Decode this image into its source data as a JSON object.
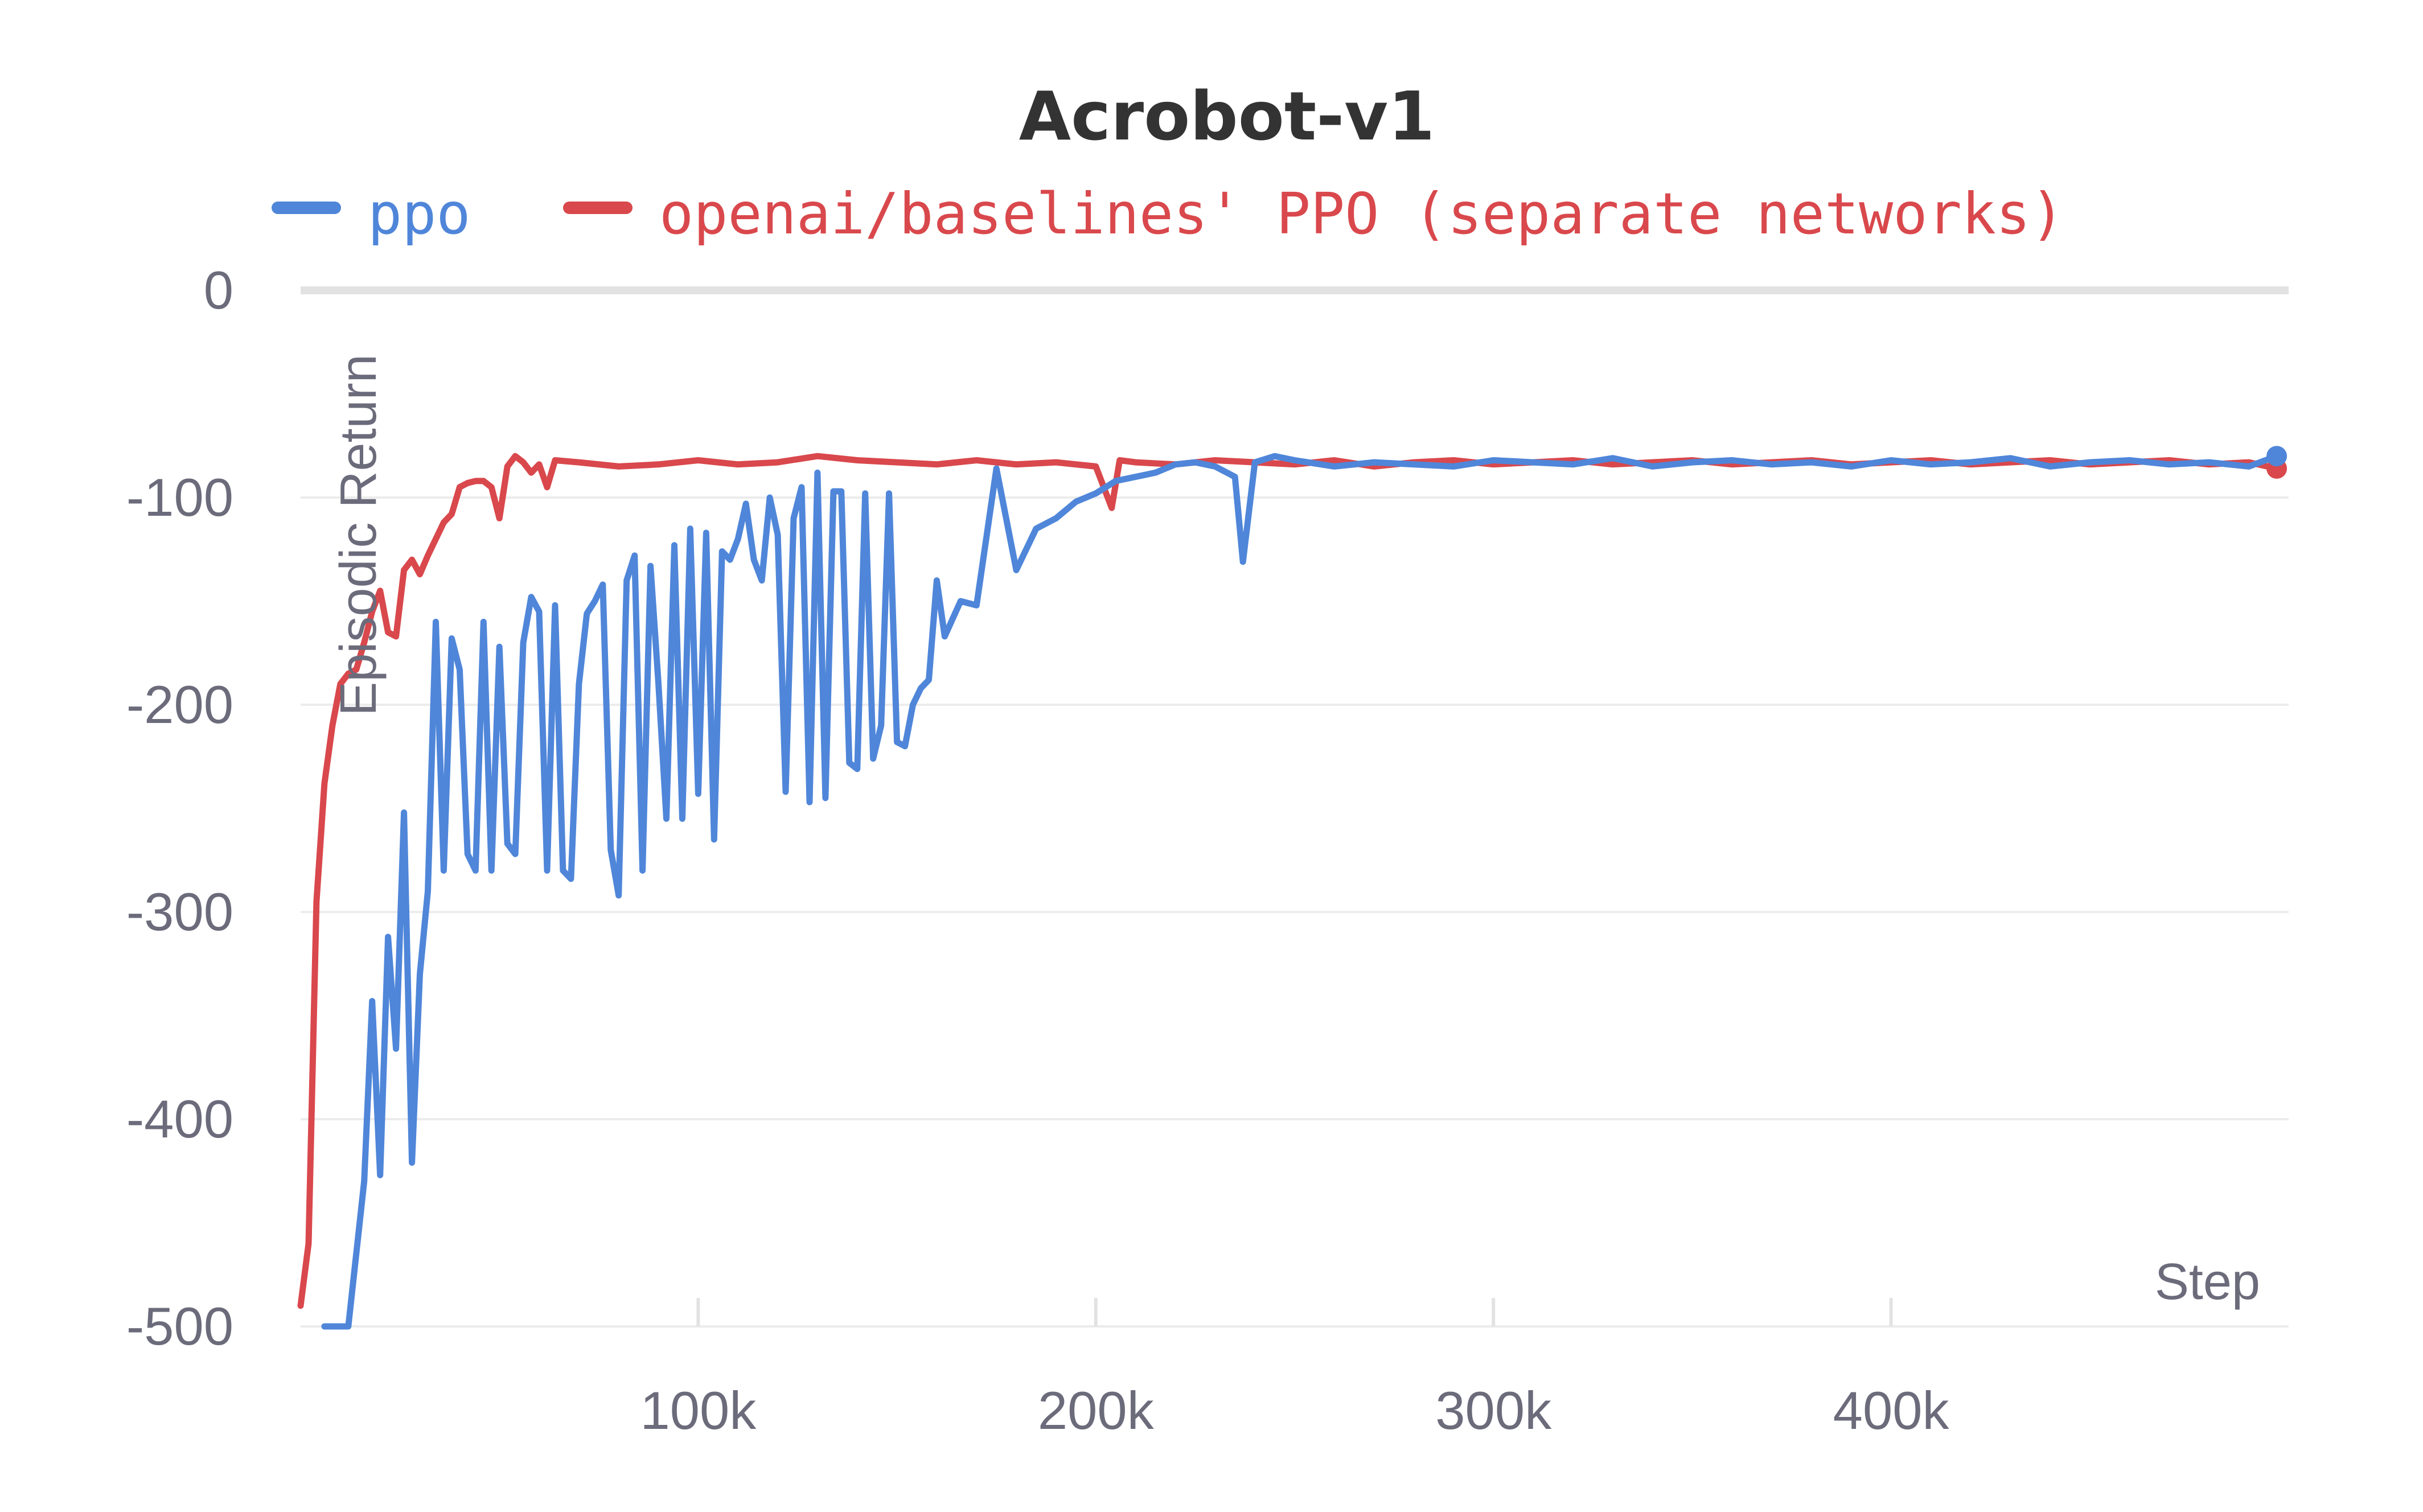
{
  "chart_data": {
    "type": "line",
    "title": "Acrobot-v1",
    "xlabel": "Step",
    "ylabel": "Episodic Return",
    "xlim": [
      0,
      500000
    ],
    "ylim": [
      -500,
      0
    ],
    "xticks": [
      100000,
      200000,
      300000,
      400000
    ],
    "xtick_labels": [
      "100k",
      "200k",
      "300k",
      "400k"
    ],
    "yticks": [
      0,
      -100,
      -200,
      -300,
      -400,
      -500
    ],
    "ytick_labels": [
      "0",
      "-100",
      "-200",
      "-300",
      "-400",
      "-500"
    ],
    "grid": true,
    "legend_position": "top",
    "series": [
      {
        "name": "ppo",
        "color": "#4f86d9",
        "x": [
          6000,
          12000,
          16000,
          18000,
          20000,
          22000,
          24000,
          26000,
          28000,
          30000,
          32000,
          34000,
          36000,
          38000,
          40000,
          42000,
          44000,
          46000,
          48000,
          50000,
          52000,
          54000,
          56000,
          58000,
          60000,
          62000,
          64000,
          66000,
          68000,
          70000,
          72000,
          74000,
          76000,
          78000,
          80000,
          82000,
          84000,
          86000,
          88000,
          90000,
          92000,
          94000,
          96000,
          98000,
          100000,
          102000,
          104000,
          106000,
          108000,
          110000,
          112000,
          114000,
          116000,
          118000,
          120000,
          122000,
          124000,
          126000,
          128000,
          130000,
          132000,
          134000,
          136000,
          138000,
          140000,
          142000,
          144000,
          146000,
          148000,
          150000,
          152000,
          154000,
          156000,
          158000,
          160000,
          162000,
          166000,
          170000,
          175000,
          180000,
          185000,
          190000,
          195000,
          200000,
          205000,
          210000,
          215000,
          220000,
          225000,
          230000,
          235000,
          237000,
          240000,
          245000,
          250000,
          260000,
          270000,
          280000,
          290000,
          300000,
          310000,
          320000,
          330000,
          340000,
          350000,
          360000,
          370000,
          380000,
          390000,
          400000,
          410000,
          420000,
          430000,
          440000,
          450000,
          460000,
          470000,
          480000,
          490000,
          497000
        ],
        "y": [
          -500,
          -500,
          -430,
          -343,
          -427,
          -312,
          -366,
          -252,
          -421,
          -330,
          -290,
          -160,
          -280,
          -168,
          -183,
          -272,
          -280,
          -160,
          -280,
          -172,
          -267,
          -272,
          -170,
          -148,
          -155,
          -280,
          -152,
          -280,
          -284,
          -190,
          -156,
          -150,
          -142,
          -270,
          -292,
          -140,
          -128,
          -280,
          -133,
          -190,
          -255,
          -123,
          -255,
          -115,
          -243,
          -117,
          -265,
          -126,
          -130,
          -120,
          -103,
          -130,
          -140,
          -100,
          -118,
          -242,
          -110,
          -95,
          -247,
          -88,
          -245,
          -97,
          -97,
          -228,
          -231,
          -98,
          -226,
          -210,
          -98,
          -218,
          -220,
          -200,
          -192,
          -188,
          -140,
          -167,
          -150,
          -152,
          -86,
          -135,
          -115,
          -110,
          -102,
          -98,
          -92,
          -90,
          -88,
          -84,
          -83,
          -85,
          -90,
          -131,
          -83,
          -80,
          -82,
          -85,
          -83,
          -84,
          -85,
          -82,
          -83,
          -84,
          -81,
          -85,
          -83,
          -82,
          -84,
          -83,
          -85,
          -82,
          -84,
          -83,
          -81,
          -85,
          -83,
          -82,
          -84,
          -83,
          -85,
          -80
        ]
      },
      {
        "name": "openai/baselines' PPO (separate networks)",
        "color": "#d9484c",
        "x": [
          0,
          2000,
          4000,
          6000,
          8000,
          10000,
          12000,
          14000,
          16000,
          18000,
          20000,
          22000,
          24000,
          26000,
          28000,
          30000,
          32000,
          34000,
          36000,
          38000,
          40000,
          42000,
          44000,
          46000,
          48000,
          50000,
          52000,
          54000,
          56000,
          58000,
          60000,
          62000,
          64000,
          70000,
          80000,
          90000,
          100000,
          110000,
          120000,
          130000,
          140000,
          150000,
          160000,
          170000,
          180000,
          190000,
          200000,
          204000,
          206000,
          210000,
          220000,
          230000,
          240000,
          250000,
          260000,
          270000,
          280000,
          290000,
          300000,
          310000,
          320000,
          330000,
          340000,
          350000,
          360000,
          370000,
          380000,
          390000,
          400000,
          410000,
          420000,
          430000,
          440000,
          450000,
          460000,
          470000,
          480000,
          490000,
          497000
        ],
        "y": [
          -490,
          -460,
          -295,
          -238,
          -210,
          -190,
          -185,
          -183,
          -170,
          -155,
          -145,
          -165,
          -167,
          -135,
          -130,
          -137,
          -128,
          -120,
          -112,
          -108,
          -95,
          -93,
          -92,
          -92,
          -95,
          -110,
          -85,
          -80,
          -83,
          -88,
          -84,
          -95,
          -82,
          -83,
          -85,
          -84,
          -82,
          -84,
          -83,
          -80,
          -82,
          -83,
          -84,
          -82,
          -84,
          -83,
          -85,
          -105,
          -82,
          -83,
          -84,
          -82,
          -83,
          -84,
          -82,
          -85,
          -83,
          -82,
          -84,
          -83,
          -82,
          -84,
          -83,
          -82,
          -84,
          -83,
          -82,
          -84,
          -83,
          -82,
          -84,
          -83,
          -82,
          -84,
          -83,
          -82,
          -84,
          -83,
          -86
        ]
      }
    ]
  }
}
